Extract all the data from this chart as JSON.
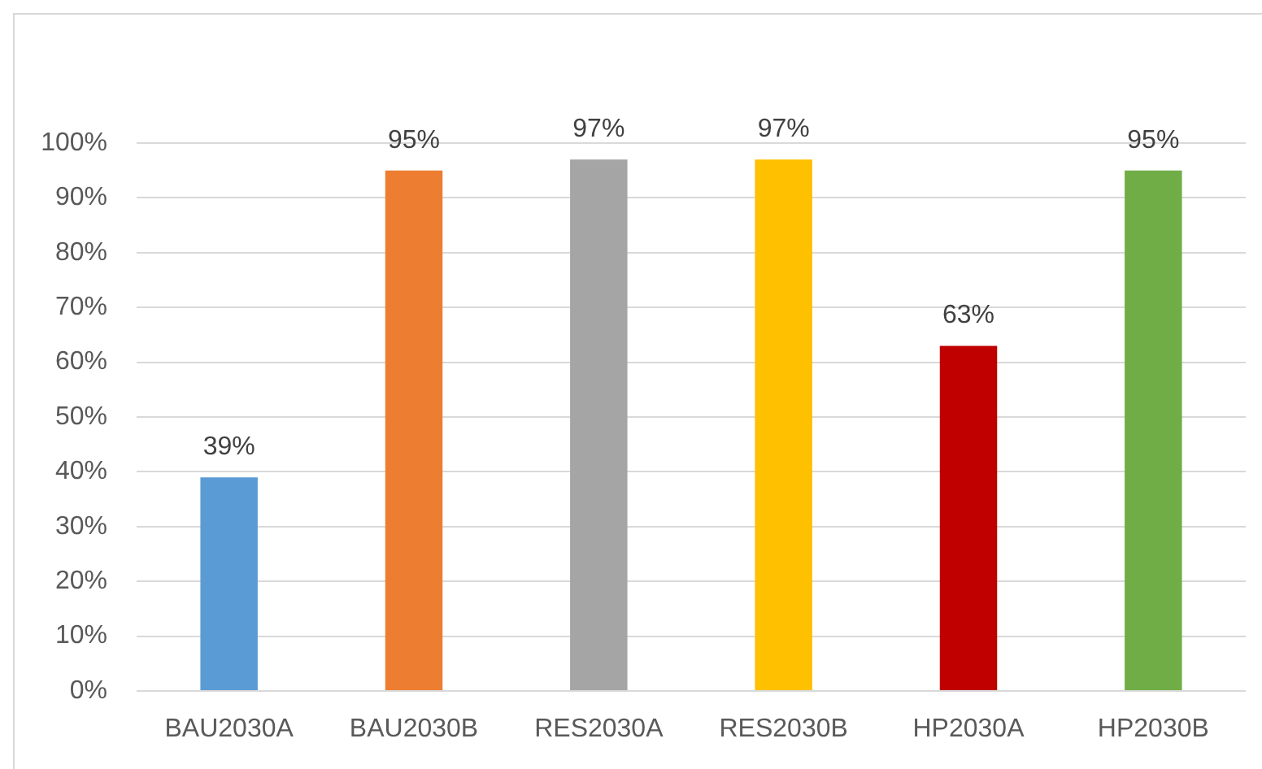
{
  "chart_data": {
    "type": "bar",
    "categories": [
      "BAU2030A",
      "BAU2030B",
      "RES2030A",
      "RES2030B",
      "HP2030A",
      "HP2030B"
    ],
    "values": [
      39,
      95,
      97,
      97,
      63,
      95
    ],
    "colors": [
      "#5b9bd5",
      "#ed7d31",
      "#a5a5a5",
      "#ffc000",
      "#c00000",
      "#70ad47"
    ],
    "value_labels": [
      "39%",
      "95%",
      "97%",
      "97%",
      "63%",
      "95%"
    ],
    "ylim": [
      0,
      100
    ],
    "yticks": [
      {
        "value": 0,
        "label": "0%"
      },
      {
        "value": 10,
        "label": "10%"
      },
      {
        "value": 20,
        "label": "20%"
      },
      {
        "value": 30,
        "label": "30%"
      },
      {
        "value": 40,
        "label": "40%"
      },
      {
        "value": 50,
        "label": "50%"
      },
      {
        "value": 60,
        "label": "60%"
      },
      {
        "value": 70,
        "label": "70%"
      },
      {
        "value": 80,
        "label": "80%"
      },
      {
        "value": 90,
        "label": "90%"
      },
      {
        "value": 100,
        "label": "100%"
      }
    ],
    "grid": "y"
  }
}
